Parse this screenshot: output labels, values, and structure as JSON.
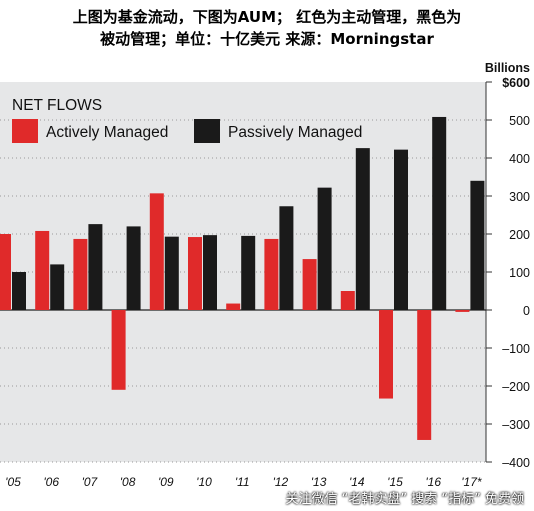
{
  "caption": {
    "line1": "上图为基金流动，下图为AUM； 红色为主动管理，黑色为",
    "line2": "被动管理；单位：十亿美元 来源：Morningstar"
  },
  "footer_text": "关注微信 “老韩实盘” 搜索 “指标” 免费领",
  "chart_data": {
    "type": "bar",
    "title": "NET FLOWS",
    "unit_label": "Billions",
    "categories": [
      "'05",
      "'06",
      "'07",
      "'08",
      "'09",
      "'10",
      "'11",
      "'12",
      "'13",
      "'14",
      "'15",
      "'16",
      "'17"
    ],
    "series": [
      {
        "name": "Actively Managed",
        "color": "#e02a2a",
        "values": [
          200,
          208,
          187,
          -210,
          307,
          192,
          17,
          187,
          134,
          50,
          -233,
          -342,
          -5
        ]
      },
      {
        "name": "Passively Managed",
        "color": "#1a1a1a",
        "values": [
          100,
          120,
          226,
          220,
          193,
          197,
          195,
          273,
          322,
          426,
          422,
          508,
          340
        ]
      }
    ],
    "ylim": [
      -400,
      600
    ],
    "yticks": [
      -400,
      -300,
      -200,
      -100,
      0,
      100,
      200,
      300,
      400,
      500,
      600
    ],
    "ytick_labels": [
      "–400",
      "–300",
      "–200",
      "–100",
      "0",
      "100",
      "200",
      "300",
      "400",
      "500",
      "$600"
    ],
    "xtick_labels": [
      "'05",
      "'06",
      "'07",
      "'08",
      "'09",
      "'10",
      "'11",
      "'12",
      "'13",
      "'14",
      "'15",
      "'16",
      "'17*"
    ],
    "grid": true,
    "legend_position": "top-left"
  }
}
